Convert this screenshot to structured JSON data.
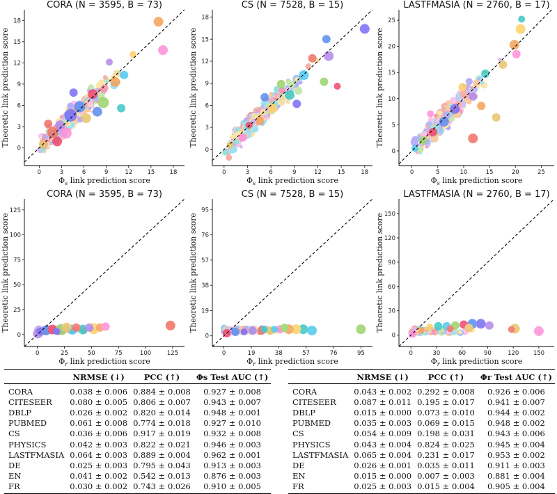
{
  "chart_data": [
    {
      "type": "scatter",
      "title": "CORA (N = 3595, B = 73)",
      "xlabel": "Φs link prediction score",
      "ylabel": "Theoretic link prediction score",
      "xlim": [
        -2,
        19.5
      ],
      "ylim": [
        -2.5,
        19.5
      ],
      "xticks": [
        0,
        3,
        6,
        9,
        12,
        15,
        18
      ],
      "yticks": [
        0,
        3,
        6,
        9,
        12,
        15,
        18
      ],
      "diagonal": "y = x (dashed)",
      "points": [
        [
          16,
          17.8,
          7
        ],
        [
          16.6,
          13.8,
          7
        ],
        [
          0.5,
          0.5,
          6
        ],
        [
          1.8,
          2.2,
          8
        ],
        [
          2.8,
          3.2,
          7
        ],
        [
          4.2,
          4.6,
          9
        ],
        [
          5.4,
          5.8,
          8
        ],
        [
          7.2,
          7.6,
          7
        ],
        [
          8.6,
          6.4,
          8
        ],
        [
          11.4,
          10.3,
          6
        ],
        [
          11.0,
          5.6,
          6
        ],
        [
          12.6,
          13.2,
          5
        ],
        [
          10.2,
          9.3,
          7
        ],
        [
          3.6,
          2.1,
          8
        ],
        [
          6.3,
          4.2,
          7
        ],
        [
          1.2,
          3.4,
          6
        ],
        [
          9.4,
          12.1,
          5
        ],
        [
          4.6,
          7.8,
          6
        ],
        [
          7.8,
          5.1,
          7
        ],
        [
          2.4,
          0.9,
          7
        ]
      ]
    },
    {
      "type": "scatter",
      "title": "CS (N = 7528, B = 15)",
      "xlabel": "Φs link prediction score",
      "ylabel": "Theoretic link prediction score",
      "xlim": [
        -1.5,
        19
      ],
      "ylim": [
        -2.2,
        19
      ],
      "xticks": [
        0,
        3,
        6,
        9,
        12,
        15,
        18
      ],
      "yticks": [
        0,
        3,
        6,
        9,
        12,
        15,
        18
      ],
      "diagonal": "y = x (dashed)",
      "points": [
        [
          18.0,
          16.4,
          7
        ],
        [
          13.1,
          15.0,
          6
        ],
        [
          14.5,
          8.6,
          5
        ],
        [
          12.8,
          9.2,
          6
        ],
        [
          10.2,
          10.1,
          7
        ],
        [
          8.4,
          7.4,
          7
        ],
        [
          6.2,
          5.6,
          7
        ],
        [
          4.6,
          3.9,
          6
        ],
        [
          2.4,
          1.6,
          6
        ],
        [
          0.8,
          0.6,
          5
        ],
        [
          11.3,
          12.4,
          6
        ],
        [
          13.4,
          12.7,
          7
        ],
        [
          9.3,
          6.2,
          6
        ],
        [
          5.2,
          7.1,
          6
        ],
        [
          3.2,
          3.3,
          5
        ],
        [
          7.3,
          8.9,
          6
        ]
      ]
    },
    {
      "type": "scatter",
      "title": "LASTFMASIA (N = 2760, B = 17)",
      "xlabel": "Φs link prediction score",
      "ylabel": "Theoretic link prediction score",
      "xlim": [
        -2.5,
        27.5
      ],
      "ylim": [
        -2.8,
        27
      ],
      "xticks": [
        0,
        5,
        10,
        15,
        20,
        25
      ],
      "yticks": [
        0,
        5,
        10,
        15,
        20,
        25
      ],
      "diagonal": "y = x (dashed)",
      "points": [
        [
          21.2,
          25.2,
          5
        ],
        [
          21.0,
          23.3,
          7
        ],
        [
          19.8,
          20.3,
          7
        ],
        [
          20.2,
          18.5,
          6
        ],
        [
          16.3,
          6.4,
          6
        ],
        [
          11.8,
          2.4,
          7
        ],
        [
          11.8,
          10.4,
          6
        ],
        [
          8.3,
          8.0,
          7
        ],
        [
          6.2,
          5.6,
          7
        ],
        [
          4.1,
          3.6,
          6
        ],
        [
          2.2,
          2.0,
          6
        ],
        [
          0.6,
          0.5,
          5
        ],
        [
          14.2,
          14.8,
          6
        ],
        [
          9.8,
          12.2,
          6
        ],
        [
          13.4,
          8.6,
          6
        ],
        [
          3.6,
          7.1,
          5
        ],
        [
          17.6,
          16.5,
          6
        ]
      ]
    },
    {
      "type": "scatter",
      "title": "CORA (N = 3595, B = 73)",
      "xlabel": "Φr link prediction score",
      "ylabel": "Theoretic link prediction score",
      "xlim": [
        -12,
        136
      ],
      "ylim": [
        -12,
        136
      ],
      "xticks": [
        0,
        25,
        50,
        75,
        100,
        125
      ],
      "yticks": [
        0,
        25,
        50,
        75,
        100,
        125
      ],
      "diagonal": "y = x (dashed)",
      "points": [
        [
          123,
          9,
          7
        ],
        [
          0.5,
          1,
          7
        ],
        [
          3,
          3,
          6
        ],
        [
          8,
          4,
          7
        ],
        [
          14,
          5,
          7
        ],
        [
          22,
          5,
          8
        ],
        [
          32,
          5,
          7
        ],
        [
          42,
          5,
          7
        ],
        [
          52,
          6,
          8
        ],
        [
          58,
          7,
          6
        ],
        [
          63,
          8,
          6
        ],
        [
          27,
          7,
          7
        ],
        [
          36,
          7,
          6
        ],
        [
          48,
          7,
          6
        ],
        [
          18,
          3,
          5
        ]
      ]
    },
    {
      "type": "scatter",
      "title": "CS (N = 7528, B = 15)",
      "xlabel": "Φr link prediction score",
      "ylabel": "Theoretic link prediction score",
      "xlim": [
        -8,
        103
      ],
      "ylim": [
        -8,
        103
      ],
      "xticks": [
        0,
        19,
        38,
        57,
        76,
        95
      ],
      "yticks": [
        0,
        19,
        38,
        57,
        76,
        95
      ],
      "diagonal": "y = x (dashed)",
      "points": [
        [
          95,
          5,
          7
        ],
        [
          61,
          4,
          7
        ],
        [
          55,
          5,
          7
        ],
        [
          50,
          5,
          7
        ],
        [
          45,
          5,
          7
        ],
        [
          39,
          5,
          6
        ],
        [
          32,
          4,
          6
        ],
        [
          26,
          4,
          6
        ],
        [
          20,
          4,
          6
        ],
        [
          14,
          3,
          5
        ],
        [
          8,
          3,
          6
        ],
        [
          2,
          2,
          6
        ],
        [
          42,
          6,
          6
        ],
        [
          35,
          5,
          5
        ],
        [
          28,
          5,
          5
        ]
      ]
    },
    {
      "type": "scatter",
      "title": "LASTFMASIA (N = 2760, B = 17)",
      "xlabel": "Φr link prediction score",
      "ylabel": "Theoretic link prediction score",
      "xlim": [
        -14,
        168
      ],
      "ylim": [
        -14,
        168
      ],
      "xticks": [
        0,
        30,
        60,
        90,
        120,
        150
      ],
      "yticks": [
        0,
        30,
        60,
        90,
        120,
        150
      ],
      "diagonal": "y = x (dashed)",
      "points": [
        [
          150,
          5,
          7
        ],
        [
          122,
          8,
          7
        ],
        [
          118,
          7,
          5
        ],
        [
          92,
          12,
          6
        ],
        [
          82,
          14,
          7
        ],
        [
          72,
          14,
          7
        ],
        [
          62,
          13,
          6
        ],
        [
          52,
          12,
          6
        ],
        [
          42,
          11,
          6
        ],
        [
          32,
          11,
          6
        ],
        [
          22,
          10,
          5
        ],
        [
          12,
          6,
          5
        ],
        [
          2,
          2,
          6
        ],
        [
          68,
          9,
          6
        ],
        [
          46,
          8,
          5
        ]
      ]
    }
  ],
  "tables": [
    {
      "columns": [
        "",
        "NRMSE (↓)",
        "PCC (↑)",
        "Φs Test AUC (↑)"
      ],
      "rows": [
        [
          "CORA",
          "0.038 ± 0.006",
          "0.884 ± 0.008",
          "0.927 ± 0.008"
        ],
        [
          "CITESEER",
          "0.080 ± 0.005",
          "0.806 ± 0.007",
          "0.943 ± 0.007"
        ],
        [
          "DBLP",
          "0.026 ± 0.002",
          "0.820 ± 0.014",
          "0.948 ± 0.001"
        ],
        [
          "PUBMED",
          "0.061 ± 0.008",
          "0.774 ± 0.018",
          "0.927 ± 0.010"
        ],
        [
          "CS",
          "0.036 ± 0.006",
          "0.917 ± 0.019",
          "0.932 ± 0.008"
        ],
        [
          "PHYSICS",
          "0.042 ± 0.003",
          "0.822 ± 0.021",
          "0.946 ± 0.003"
        ],
        [
          "LASTFMASIA",
          "0.064 ± 0.003",
          "0.889 ± 0.004",
          "0.962 ± 0.001"
        ],
        [
          "DE",
          "0.025 ± 0.003",
          "0.795 ± 0.043",
          "0.913 ± 0.003"
        ],
        [
          "EN",
          "0.041 ± 0.002",
          "0.542 ± 0.013",
          "0.876 ± 0.003"
        ],
        [
          "FR",
          "0.030 ± 0.002",
          "0.743 ± 0.026",
          "0.910 ± 0.005"
        ]
      ]
    },
    {
      "columns": [
        "",
        "NRMSE (↓)",
        "PCC (↑)",
        "Φr Test AUC (↑)"
      ],
      "rows": [
        [
          "CORA",
          "0.043 ± 0.002",
          "0.292 ± 0.008",
          "0.926 ± 0.006"
        ],
        [
          "CITESEER",
          "0.087 ± 0.011",
          "0.195 ± 0.017",
          "0.941 ± 0.007"
        ],
        [
          "DBLP",
          "0.015 ± 0.000",
          "0.073 ± 0.010",
          "0.944 ± 0.002"
        ],
        [
          "PUBMED",
          "0.035 ± 0.003",
          "0.069 ± 0.015",
          "0.948 ± 0.002"
        ],
        [
          "CS",
          "0.054 ± 0.009",
          "0.198 ± 0.031",
          "0.943 ± 0.006"
        ],
        [
          "PHYSICS",
          "0.043 ± 0.004",
          "0.824 ± 0.025",
          "0.945 ± 0.004"
        ],
        [
          "LASTFMASIA",
          "0.065 ± 0.004",
          "0.231 ± 0.017",
          "0.953 ± 0.002"
        ],
        [
          "DE",
          "0.026 ± 0.001",
          "0.035 ± 0.011",
          "0.911 ± 0.003"
        ],
        [
          "EN",
          "0.015 ± 0.000",
          "0.007 ± 0.003",
          "0.881 ± 0.004"
        ],
        [
          "FR",
          "0.025 ± 0.003",
          "0.015 ± 0.004",
          "0.905 ± 0.004"
        ]
      ]
    }
  ],
  "palette": [
    "#f4a259",
    "#7b6cf6",
    "#3ec7c2",
    "#f07167",
    "#9ad26a",
    "#ff8fd8",
    "#5b8def",
    "#ffd166",
    "#b388eb",
    "#4cc9f0",
    "#e9c46a",
    "#ef476f"
  ]
}
